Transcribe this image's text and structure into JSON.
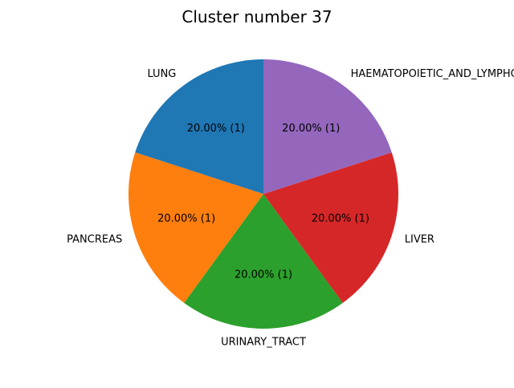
{
  "chart_data": {
    "type": "pie",
    "title": "Cluster number 37",
    "slices": [
      {
        "label": "LUNG",
        "value": 1,
        "percent_label": "20.00%  (1)",
        "color": "#1f77b4"
      },
      {
        "label": "PANCREAS",
        "value": 1,
        "percent_label": "20.00%  (1)",
        "color": "#ff7f0e"
      },
      {
        "label": "URINARY_TRACT",
        "value": 1,
        "percent_label": "20.00%  (1)",
        "color": "#2ca02c"
      },
      {
        "label": "LIVER",
        "value": 1,
        "percent_label": "20.00%  (1)",
        "color": "#d62728"
      },
      {
        "label": "HAEMATOPOIETIC_AND_LYMPHOID_TISSUE",
        "value": 1,
        "percent_label": "20.00%  (1)",
        "color": "#9467bd"
      }
    ],
    "start_angle_deg": 90,
    "direction": "counterclockwise"
  }
}
